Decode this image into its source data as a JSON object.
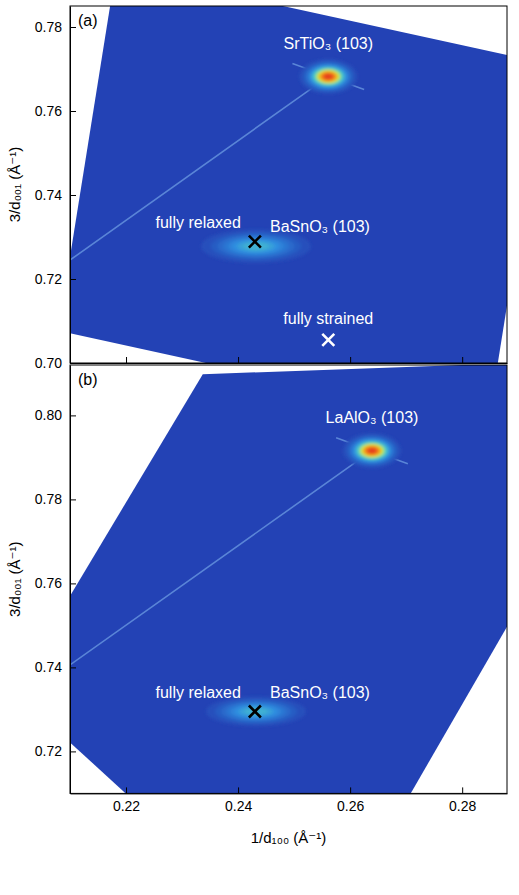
{
  "chart_data": [
    {
      "type": "heatmap",
      "title": "(a)",
      "y_label": "3/d₀₀₁ (Å⁻¹)",
      "xlim": [
        0.21,
        0.288
      ],
      "xticks": [
        0.22,
        0.24,
        0.26,
        0.28
      ],
      "ylim": [
        0.7,
        0.785
      ],
      "yticks": [
        {
          "value": 0.7,
          "label": "0.70"
        },
        0.72,
        0.74,
        0.76,
        0.78
      ],
      "tick_labels": "y",
      "scan_area": {
        "x": [
          0.2182,
          0.2949,
          0.2846,
          0.2079
        ],
        "y": [
          0.7937,
          0.7713,
          0.6853,
          0.7077
        ]
      },
      "streaks": [
        {
          "x": [
            0.21,
            0.2561
          ],
          "y": [
            0.7245,
            0.7682
          ]
        },
        {
          "x": [
            0.2497,
            0.2625
          ],
          "y": [
            0.7713,
            0.7651
          ]
        }
      ],
      "peaks": [
        {
          "name": "SrTiO₃ (103)",
          "x": 0.2561,
          "y": 0.7682,
          "x_width": 0.005,
          "y_width": 0.004,
          "intensity": 1
        },
        {
          "name": "BaSnO₃ (103)",
          "x": 0.2432,
          "y": 0.7278,
          "x_width": 0.011,
          "y_width": 0.0045,
          "intensity": 0.45
        }
      ],
      "markers": [
        {
          "name": "fully relaxed",
          "x": 0.243,
          "y": 0.7289,
          "marker": "x",
          "color": "#000000"
        },
        {
          "name": "fully strained",
          "x": 0.2561,
          "y": 0.7055,
          "marker": "x",
          "color": "#ffffff"
        }
      ]
    },
    {
      "type": "heatmap",
      "title": "(b)",
      "x_label": "1/d₁₀₀ (Å⁻¹)",
      "y_label": "3/d₀₀₁ (Å⁻¹)",
      "xlim": [
        0.21,
        0.288
      ],
      "xticks": [
        0.22,
        0.24,
        0.26,
        0.28
      ],
      "ylim": [
        0.71,
        0.812
      ],
      "yticks": [
        0.72,
        0.74,
        0.76,
        0.78,
        {
          "value": 0.8,
          "label": "0.80"
        }
      ],
      "scan_area": {
        "x": [
          0.2337,
          0.3157,
          0.2532,
          0.1999
        ],
        "y": [
          0.8098,
          0.8137,
          0.6693,
          0.7345
        ]
      },
      "streaks": [
        {
          "x": [
            0.21,
            0.2639
          ],
          "y": [
            0.7406,
            0.7916
          ]
        },
        {
          "x": [
            0.2575,
            0.2703
          ],
          "y": [
            0.7947,
            0.7885
          ]
        }
      ],
      "peaks": [
        {
          "name": "LaAlO₃ (103)",
          "x": 0.2639,
          "y": 0.7916,
          "x_width": 0.005,
          "y_width": 0.004,
          "intensity": 1
        },
        {
          "name": "BaSnO₃ (103)",
          "x": 0.2432,
          "y": 0.7295,
          "x_width": 0.01,
          "y_width": 0.004,
          "intensity": 0.45
        }
      ],
      "markers": [
        {
          "name": "fully relaxed",
          "x": 0.243,
          "y": 0.7295,
          "marker": "x",
          "color": "#000000"
        }
      ]
    }
  ]
}
